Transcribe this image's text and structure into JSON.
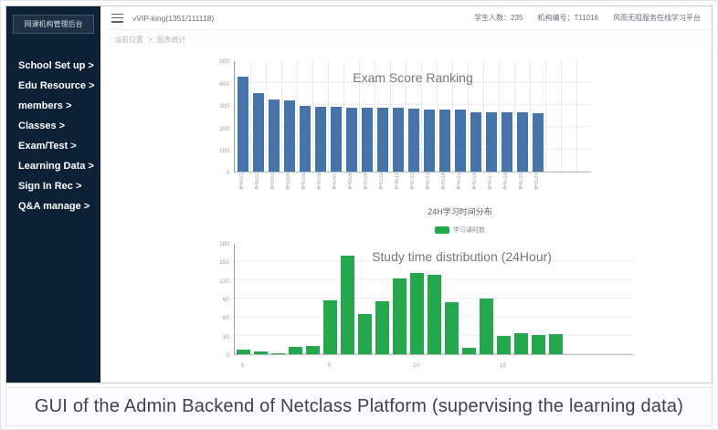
{
  "caption": "GUI of the Admin Backend of Netclass Platform (supervising the learning data)",
  "sidebar": {
    "header": "网课机构管理后台",
    "items": [
      {
        "label": "School Set up >"
      },
      {
        "label": "Edu Resource >"
      },
      {
        "label": "members >"
      },
      {
        "label": "Classes >"
      },
      {
        "label": "Exam/Test >"
      },
      {
        "label": "Learning Data >"
      },
      {
        "label": "Sign In Rec >"
      },
      {
        "label": "Q&A manage >"
      }
    ]
  },
  "topbar": {
    "user": "vVIP-king(1351/111118)",
    "students": "学生人数：235",
    "org_id": "机构编号：T11016",
    "slogan": "风雨无阻服务在线学习平台"
  },
  "breadcrumb": {
    "location": "当前位置",
    "separator": ">",
    "current": "图表统计"
  },
  "chart_data": [
    {
      "type": "bar",
      "title": "Exam Score Ranking",
      "color": "#4673aa",
      "ylim": [
        0,
        500
      ],
      "yticks": [
        0,
        100,
        200,
        300,
        400,
        500
      ],
      "grid": "horizontal+vertical",
      "categories": [
        "学员01",
        "学员02",
        "学员03",
        "学员04",
        "学员05",
        "学员06",
        "学员07",
        "学员08",
        "学员09",
        "学员10",
        "学员11",
        "学员12",
        "学员13",
        "学员14",
        "学员15",
        "学员16",
        "学员17",
        "学员18",
        "学员19",
        "学员20"
      ],
      "values": [
        427,
        352,
        327,
        320,
        298,
        293,
        291,
        290,
        290,
        289,
        288,
        284,
        281,
        280,
        279,
        269,
        268,
        267,
        266,
        265
      ]
    },
    {
      "type": "bar",
      "title": "Study time distribution (24Hour)",
      "title_cn": "24H学习时间分布",
      "legend": "学习课时数",
      "color": "#23a94b",
      "ylim": [
        0,
        180
      ],
      "yticks": [
        0,
        30,
        60,
        90,
        120,
        150,
        180
      ],
      "grid": "horizontal",
      "categories": [
        "0",
        "1",
        "2",
        "3",
        "4",
        "5",
        "6",
        "7",
        "8",
        "9",
        "10",
        "11",
        "12",
        "13",
        "14",
        "15",
        "16",
        "17",
        "18"
      ],
      "label_every": 5,
      "values": [
        8,
        4,
        1,
        12,
        14,
        87,
        160,
        65,
        85,
        123,
        131,
        129,
        84,
        10,
        90,
        29,
        34,
        31,
        32
      ]
    }
  ]
}
